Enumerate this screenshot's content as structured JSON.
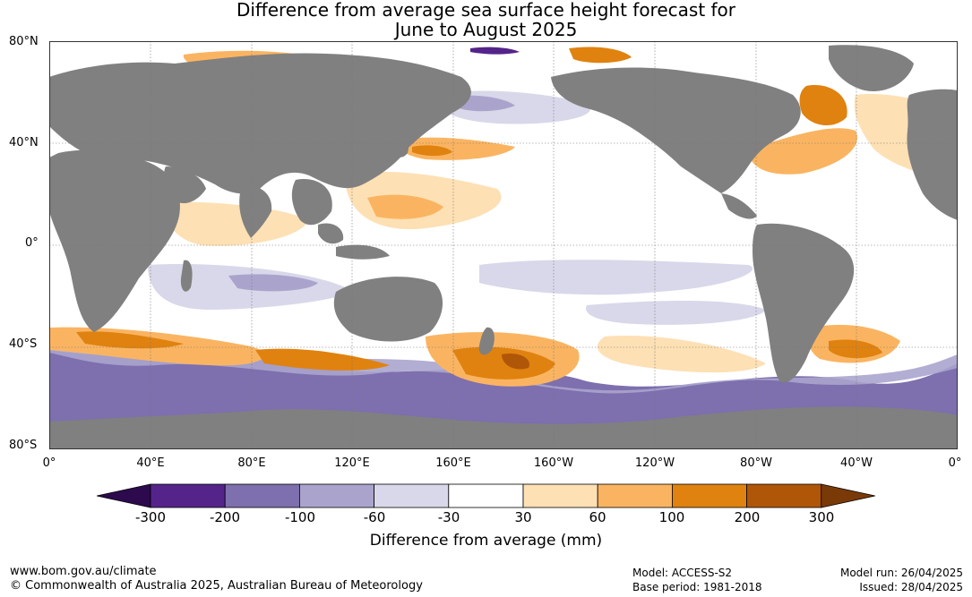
{
  "title": {
    "line1": "Difference from average sea surface height forecast for",
    "line2": "June to August 2025"
  },
  "lat_labels": [
    "80°N",
    "40°N",
    "0°",
    "40°S",
    "80°S"
  ],
  "lon_labels": [
    "0°",
    "40°E",
    "80°E",
    "120°E",
    "160°E",
    "160°W",
    "120°W",
    "80°W",
    "40°W",
    "0°"
  ],
  "colorbar": {
    "ticks": [
      "-300",
      "-200",
      "-100",
      "-60",
      "-30",
      "30",
      "60",
      "100",
      "200",
      "300"
    ],
    "colors": [
      "#2d0a4e",
      "#54248a",
      "#7e6fae",
      "#aaa4cd",
      "#d8d8ea",
      "#ffffff",
      "#fde0b4",
      "#fab461",
      "#e0820f",
      "#b05608",
      "#7a3a08"
    ],
    "label": "Difference from average (mm)"
  },
  "map_colors": {
    "land": "#808080",
    "ocean_neutral": "#ffffff",
    "grid": "#777777"
  },
  "footer": {
    "website": "www.bom.gov.au/climate",
    "copyright": "© Commonwealth of Australia 2025, Australian Bureau of Meteorology",
    "model": "Model: ACCESS-S2",
    "base_period": "Base period: 1981-2018",
    "model_run": "Model run: 26/04/2025",
    "issued": "Issued: 28/04/2025"
  }
}
